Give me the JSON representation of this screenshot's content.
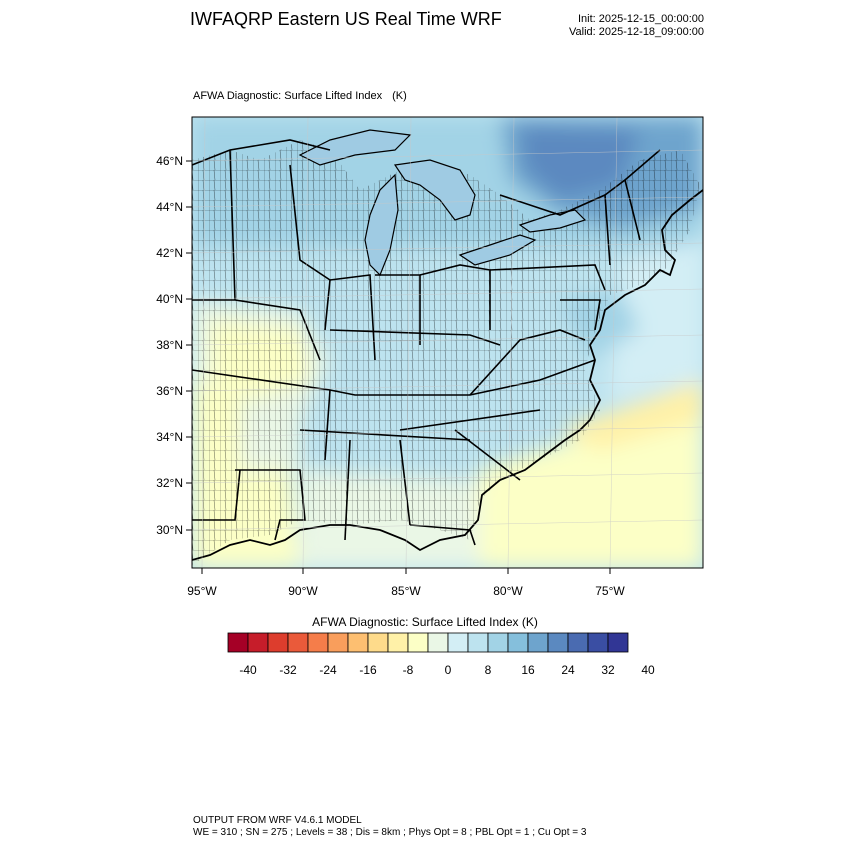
{
  "header": {
    "title": "IWFAQRP Eastern US Real Time WRF",
    "init": "Init: 2025-12-15_00:00:00",
    "valid": "Valid: 2025-12-18_09:00:00"
  },
  "map": {
    "field_label": "AFWA Diagnostic: Surface Lifted Index",
    "units": "(K)",
    "lat_labels": [
      "46°N",
      "44°N",
      "42°N",
      "40°N",
      "38°N",
      "36°N",
      "34°N",
      "32°N",
      "30°N"
    ],
    "lon_labels": [
      "95°W",
      "90°W",
      "85°W",
      "80°W",
      "75°W"
    ]
  },
  "colorbar": {
    "title": "AFWA Diagnostic: Surface Lifted Index  (K)",
    "tick_labels": [
      "-40",
      "-32",
      "-24",
      "-16",
      "-8",
      "0",
      "8",
      "16",
      "24",
      "32",
      "40"
    ],
    "colors": [
      "#a50026",
      "#c61d2a",
      "#dd3d2d",
      "#ea5a3a",
      "#f57d4a",
      "#f99e5c",
      "#fdbf71",
      "#fedb8b",
      "#fff1a8",
      "#fcffc6",
      "#eaf7e6",
      "#d3eef5",
      "#bde3ef",
      "#a2d3e6",
      "#85bfdc",
      "#6ea4cd",
      "#5b89c0",
      "#4a6bb1",
      "#3a4ea3",
      "#313695"
    ]
  },
  "footer": {
    "line1": "OUTPUT FROM WRF V4.6.1 MODEL",
    "line2": "WE = 310 ; SN = 275 ; Levels = 38 ; Dis = 8km ; Phys Opt = 8 ; PBL Opt = 1 ; Cu Opt = 3"
  }
}
